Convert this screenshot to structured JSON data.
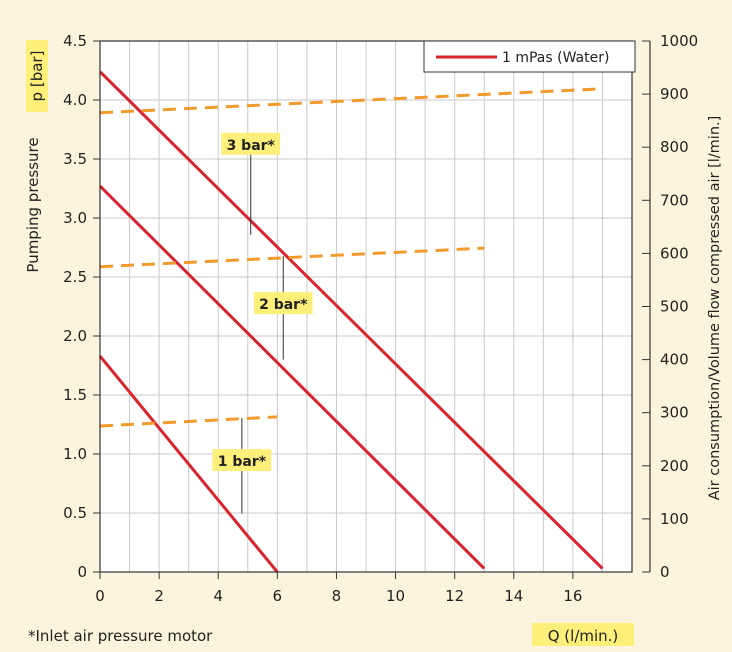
{
  "chart_data": {
    "type": "line",
    "xlabel": "Q (l/min.)",
    "ylabel": "Pumping pressure",
    "ylabel_unit": "p [bar]",
    "y2label": "Air consumption/Volume flow compressed air [l/min.]",
    "xlim": [
      0,
      18
    ],
    "ylim": [
      0,
      4.5
    ],
    "y2lim": [
      0,
      1000
    ],
    "x_ticks": [
      0,
      2,
      4,
      6,
      8,
      10,
      12,
      14,
      16
    ],
    "y_ticks": [
      0,
      0.5,
      1.0,
      1.5,
      2.0,
      2.5,
      3.0,
      3.5,
      4.0,
      4.5
    ],
    "y2_ticks": [
      0,
      100,
      200,
      300,
      400,
      500,
      600,
      700,
      800,
      900,
      1000
    ],
    "grid": true,
    "legend": {
      "position": "top-right",
      "entries": [
        "1 mPas (Water)"
      ]
    },
    "footnote": "*Inlet air pressure motor",
    "colors": {
      "pressure": "#d9232d",
      "air": "#f39a2c",
      "highlight": "#fdf07a",
      "background": "#fbf4dc"
    },
    "series": [
      {
        "name": "1 mPas (Water)",
        "axis": "left",
        "group": "3 bar*",
        "x": [
          0,
          17
        ],
        "y": [
          4.24,
          0.03
        ]
      },
      {
        "name": "1 mPas (Water)",
        "axis": "left",
        "group": "2 bar*",
        "x": [
          0,
          13
        ],
        "y": [
          3.27,
          0.03
        ]
      },
      {
        "name": "1 mPas (Water)",
        "axis": "left",
        "group": "1 bar*",
        "x": [
          0,
          6
        ],
        "y": [
          1.83,
          0.0
        ]
      },
      {
        "name": "Air consumption",
        "axis": "right",
        "group": "3 bar*",
        "dashed": true,
        "x": [
          0,
          17
        ],
        "y": [
          865,
          910
        ]
      },
      {
        "name": "Air consumption",
        "axis": "right",
        "group": "2 bar*",
        "dashed": true,
        "x": [
          0,
          13
        ],
        "y": [
          575,
          610
        ]
      },
      {
        "name": "Air consumption",
        "axis": "right",
        "group": "1 bar*",
        "dashed": true,
        "x": [
          0,
          6
        ],
        "y": [
          275,
          292
        ]
      }
    ],
    "annotations": [
      {
        "text": "3 bar*",
        "x": 5.1,
        "y_left": 3.62,
        "leader_y2": [
          820,
          635
        ]
      },
      {
        "text": "2 bar*",
        "x": 6.2,
        "y_left": 2.27,
        "leader_y2": [
          595,
          400
        ]
      },
      {
        "text": "1 bar*",
        "x": 4.8,
        "y_left": 0.94,
        "leader_y2": [
          290,
          110
        ]
      }
    ]
  }
}
